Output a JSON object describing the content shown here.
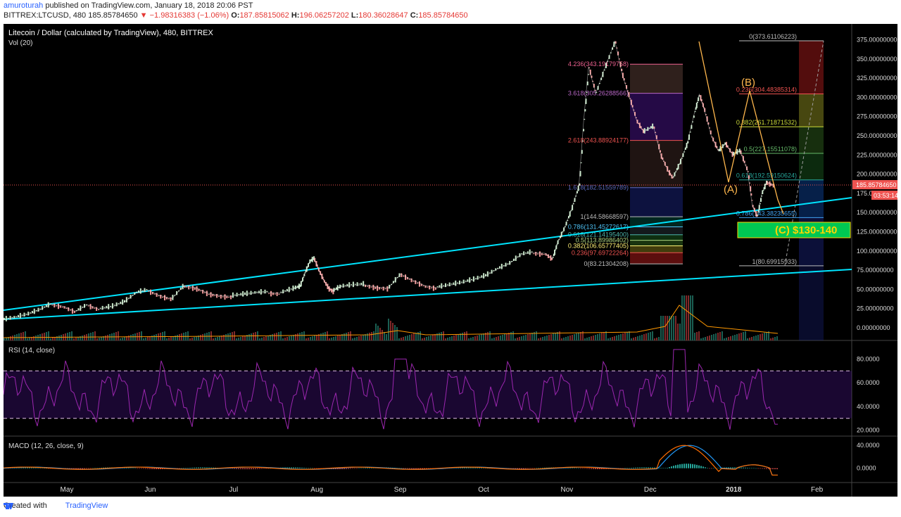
{
  "header": {
    "line1_user": "amuroturah",
    "line1_rest": " published on TradingView.com, January 18, 2018 20:06 PST",
    "symbol": "BITTREX:LTCUSD, 480",
    "last": "185.85784650",
    "change": "▼ −1.98316383 (−1.06%)",
    "o_label": "O:",
    "o_val": "187.85815062",
    "h_label": "H:",
    "h_val": "196.06257202",
    "l_label": "L:",
    "l_val": "180.36028647",
    "c_label": "C:",
    "c_val": "185.85784650"
  },
  "footer": {
    "created": "Created with",
    "brand": "TradingView"
  },
  "colors": {
    "background": "#000000",
    "up": "#26a69a",
    "down": "#ef5350",
    "trend": "#00e5ff",
    "rsi": "#9c27b0",
    "macd": "#2196f3",
    "signal": "#ff6d00"
  },
  "chart_data": [
    {
      "type": "line",
      "title": "Litecoin / Dollar (calculated by TradingView), 480, BITTREX",
      "subtitle": "Vol (20)",
      "x": [
        "May",
        "Jun",
        "Jul",
        "Aug",
        "Sep",
        "Oct",
        "Nov",
        "Dec",
        "2018",
        "Feb"
      ],
      "yticks": [
        "375.00000000",
        "350.00000000",
        "325.00000000",
        "300.00000000",
        "275.00000000",
        "250.00000000",
        "225.00000000",
        "200.00000000",
        "175.00000000",
        "150.00000000",
        "125.00000000",
        "100.00000000",
        "75.00000000",
        "50.00000000",
        "25.00000000",
        "0.00000000"
      ],
      "ylim": [
        0,
        385
      ],
      "last_price_label": "185.85784650",
      "countdown_label": "03:53:14",
      "price_path": [
        [
          0,
          10
        ],
        [
          5,
          13
        ],
        [
          10,
          17
        ],
        [
          15,
          23
        ],
        [
          20,
          31
        ],
        [
          25,
          28
        ],
        [
          30,
          21
        ],
        [
          35,
          30
        ],
        [
          40,
          24
        ],
        [
          45,
          27
        ],
        [
          50,
          33
        ],
        [
          55,
          45
        ],
        [
          60,
          49
        ],
        [
          65,
          42
        ],
        [
          70,
          38
        ],
        [
          75,
          55
        ],
        [
          80,
          52
        ],
        [
          85,
          45
        ],
        [
          90,
          42
        ],
        [
          95,
          41
        ],
        [
          100,
          43
        ],
        [
          105,
          45
        ],
        [
          110,
          46
        ],
        [
          115,
          45
        ],
        [
          120,
          50
        ],
        [
          123,
          53
        ],
        [
          125,
          70
        ],
        [
          127,
          85
        ],
        [
          129,
          90
        ],
        [
          131,
          75
        ],
        [
          133,
          62
        ],
        [
          135,
          52
        ],
        [
          137,
          48
        ],
        [
          140,
          53
        ],
        [
          145,
          55
        ],
        [
          150,
          56
        ],
        [
          155,
          53
        ],
        [
          160,
          52
        ],
        [
          165,
          70
        ],
        [
          170,
          62
        ],
        [
          175,
          55
        ],
        [
          180,
          52
        ],
        [
          185,
          55
        ],
        [
          190,
          58
        ],
        [
          195,
          62
        ],
        [
          200,
          67
        ],
        [
          205,
          76
        ],
        [
          210,
          83
        ],
        [
          215,
          95
        ],
        [
          220,
          98
        ],
        [
          225,
          97
        ],
        [
          228,
          90
        ],
        [
          230,
          110
        ],
        [
          233,
          130
        ],
        [
          236,
          155
        ],
        [
          239,
          185
        ],
        [
          241,
          270
        ],
        [
          243,
          340
        ],
        [
          246,
          305
        ],
        [
          250,
          340
        ],
        [
          254,
          373
        ],
        [
          257,
          330
        ],
        [
          260,
          300
        ],
        [
          263,
          270
        ],
        [
          266,
          255
        ],
        [
          270,
          262
        ],
        [
          273,
          225
        ],
        [
          276,
          205
        ],
        [
          278,
          195
        ],
        [
          281,
          215
        ],
        [
          284,
          240
        ],
        [
          287,
          280
        ],
        [
          289,
          304
        ],
        [
          291,
          285
        ],
        [
          294,
          250
        ],
        [
          297,
          230
        ],
        [
          300,
          240
        ],
        [
          303,
          225
        ],
        [
          306,
          230
        ],
        [
          309,
          205
        ],
        [
          311,
          160
        ],
        [
          313,
          145
        ],
        [
          315,
          175
        ],
        [
          317,
          190
        ],
        [
          320,
          186
        ]
      ],
      "fib_extension": [
        {
          "label": "4.236(343.19179758)",
          "value": 343.19
        },
        {
          "label": "3.618(305.26288566)",
          "value": 305.26
        },
        {
          "label": "2.618(243.88924177)",
          "value": 243.89
        },
        {
          "label": "1.618(182.51559789)",
          "value": 182.52
        },
        {
          "label": "1(144.58668597)",
          "value": 144.59
        },
        {
          "label": "0.786(131.45272617)",
          "value": 131.45
        },
        {
          "label": "0.618(121.14195400)",
          "value": 121.14
        },
        {
          "label": "0.5(113.89986402)",
          "value": 113.9
        },
        {
          "label": "0.382(106.65777405)",
          "value": 106.66
        },
        {
          "label": "0.236(97.69722264)",
          "value": 97.7
        },
        {
          "label": "0(83.21304208)",
          "value": 83.21
        }
      ],
      "fib_retracement": [
        {
          "label": "0(373.61106223)",
          "value": 373.61
        },
        {
          "label": "0.236(304.48385314)",
          "value": 304.48
        },
        {
          "label": "0.382(261.71871532)",
          "value": 261.72
        },
        {
          "label": "0.5(227.15511078)",
          "value": 227.16
        },
        {
          "label": "0.618(192.59150624)",
          "value": 192.59
        },
        {
          "label": "0.786(143.38235655)",
          "value": 143.38
        },
        {
          "label": "1(80.69915933)",
          "value": 80.7
        }
      ],
      "wave_labels": [
        "(A)",
        "(B)"
      ],
      "target_label": "(C) $130-140"
    },
    {
      "type": "line",
      "title": "RSI (14, close)",
      "yticks": [
        "80.0000",
        "60.0000",
        "40.0000",
        "20.0000"
      ],
      "ylim": [
        15,
        95
      ],
      "bands": [
        30,
        70
      ]
    },
    {
      "type": "line",
      "title": "MACD (12, 26, close, 9)",
      "yticks": [
        "40.0000",
        "0.0000"
      ],
      "ylim": [
        -25,
        55
      ]
    }
  ]
}
